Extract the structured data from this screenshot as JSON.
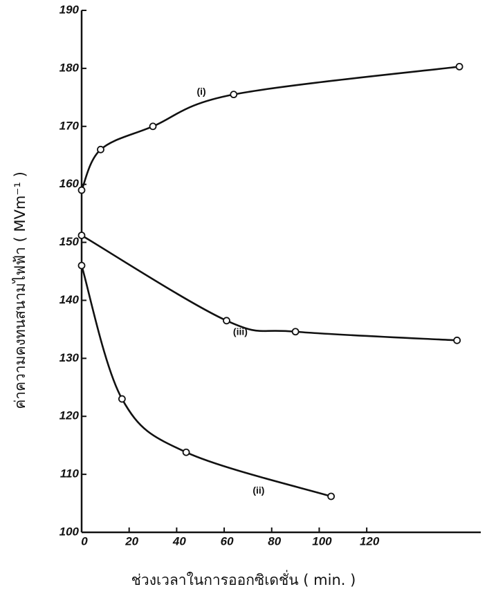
{
  "chart_data": {
    "type": "line",
    "x_label": "ช่วงเวลาในการออกซิเดชั่น ( min. )",
    "y_label": "ค่าความคงทนสนามไฟฟ้า ( MVm⁻¹ )",
    "xlim": [
      0,
      168
    ],
    "ylim": [
      100,
      190
    ],
    "xticks": [
      0,
      20,
      40,
      60,
      80,
      100,
      120
    ],
    "yticks": [
      100,
      110,
      120,
      130,
      140,
      150,
      160,
      170,
      180,
      190
    ],
    "grid": false,
    "series": [
      {
        "name": "(i)",
        "color": "#111111",
        "x": [
          0,
          8,
          30,
          64,
          159
        ],
        "values": [
          159,
          166,
          170,
          175.5,
          180.3
        ]
      },
      {
        "name": "(ii)",
        "color": "#111111",
        "x": [
          0,
          17,
          44,
          105
        ],
        "values": [
          146,
          123,
          113.8,
          106.2
        ]
      },
      {
        "name": "(iii)",
        "color": "#111111",
        "x": [
          0,
          61,
          90,
          158
        ],
        "values": [
          151.2,
          136.5,
          134.6,
          133.1
        ]
      }
    ]
  }
}
